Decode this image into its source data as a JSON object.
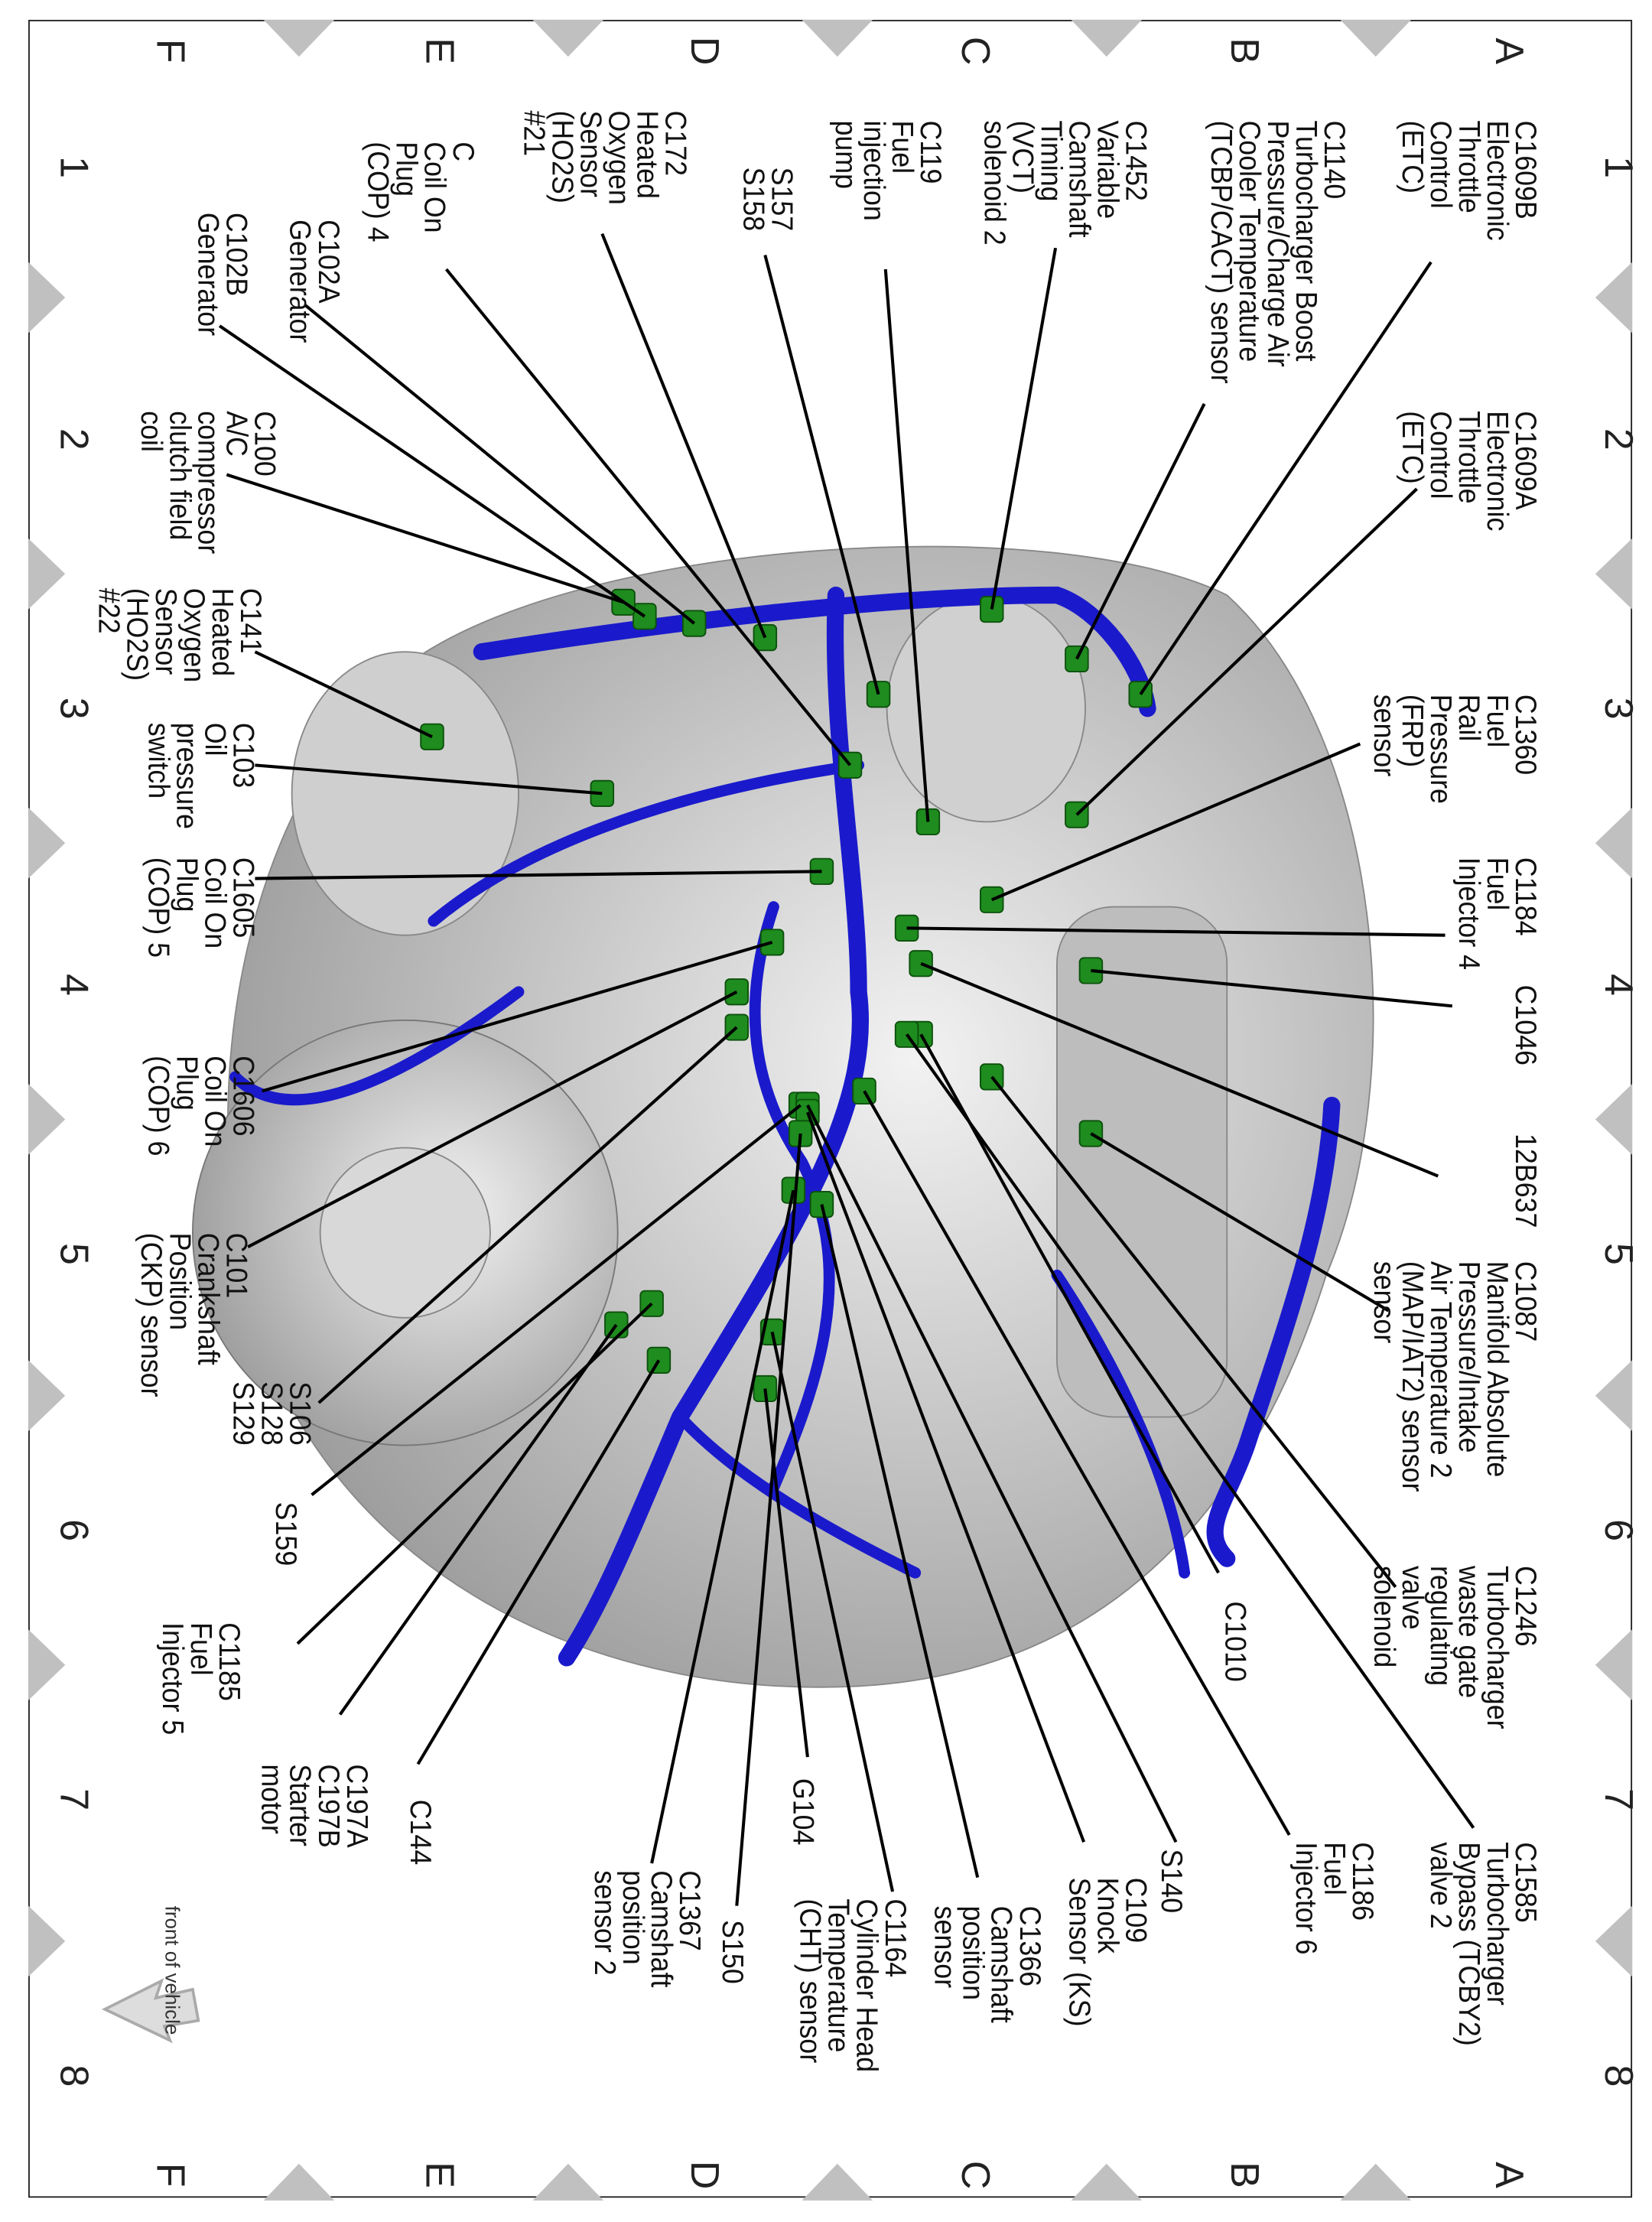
{
  "grid": {
    "columns": [
      "1",
      "2",
      "3",
      "4",
      "5",
      "6",
      "7",
      "8"
    ],
    "rows": [
      "A",
      "B",
      "C",
      "D",
      "E",
      "F"
    ]
  },
  "labels": [
    {
      "lines": [
        "C1609B",
        "Electronic",
        "Throttle",
        "Control",
        "(ETC)"
      ]
    },
    {
      "lines": [
        "C1140",
        "Turbocharger Boost",
        "Pressure/Charge Air",
        "Cooler Temperature",
        "(TCBP/CACT) sensor"
      ]
    },
    {
      "lines": [
        "C1452",
        "Variable",
        "Camshaft",
        "Timing",
        "(VCT)",
        "solenoid 2"
      ]
    },
    {
      "lines": [
        "C119",
        "Fuel",
        "injection",
        "pump"
      ]
    },
    {
      "lines": [
        "S157",
        "S158"
      ]
    },
    {
      "lines": [
        "C172",
        "Heated",
        "Oxygen",
        "Sensor",
        "(HO2S)",
        "#21"
      ]
    },
    {
      "lines": [
        "C",
        "Coil On",
        "Plug",
        "(COP) 4"
      ]
    },
    {
      "lines": [
        "C102A",
        "Generator"
      ]
    },
    {
      "lines": [
        "C102B",
        "Generator"
      ]
    },
    {
      "lines": [
        "C1609A",
        "Electronic",
        "Throttle",
        "Control",
        "(ETC)"
      ]
    },
    {
      "lines": [
        "C100",
        "A/C",
        "compressor",
        "clutch field",
        "coil"
      ]
    },
    {
      "lines": [
        "C1360",
        "Fuel",
        "Rail",
        "Pressure",
        "(FRP)",
        "sensor"
      ]
    },
    {
      "lines": [
        "C141",
        "Heated",
        "Oxygen",
        "Sensor",
        "(HO2S)",
        "#22"
      ]
    },
    {
      "lines": [
        "C103",
        "Oil",
        "pressure",
        "switch"
      ]
    },
    {
      "lines": [
        "C1184",
        "Fuel",
        "Injector 4"
      ]
    },
    {
      "lines": [
        "C1605",
        "Coil On",
        "Plug",
        "(COP) 5"
      ]
    },
    {
      "lines": [
        "C1046"
      ]
    },
    {
      "lines": [
        "C1606",
        "Coil On",
        "Plug",
        "(COP) 6"
      ]
    },
    {
      "lines": [
        "12B637"
      ]
    },
    {
      "lines": [
        "C101",
        "Crankshaft",
        "Position",
        "(CKP) sensor"
      ]
    },
    {
      "lines": [
        "C1087",
        "Manifold Absolute",
        "Pressure/Intake",
        "Air Temperature 2",
        "(MAP/IAT2) sensor",
        "sensor"
      ]
    },
    {
      "lines": [
        "S106",
        "S128",
        "S129"
      ]
    },
    {
      "lines": [
        "S159"
      ]
    },
    {
      "lines": [
        "C1246",
        "Turbocharger",
        "waste gate",
        "regulating",
        "valve",
        "solenoid"
      ]
    },
    {
      "lines": [
        "C1010"
      ]
    },
    {
      "lines": [
        "C1185",
        "Fuel",
        "Injector 5"
      ]
    },
    {
      "lines": [
        "C144"
      ]
    },
    {
      "lines": [
        "C197A",
        "C197B",
        "Starter",
        "motor"
      ]
    },
    {
      "lines": [
        "C1585",
        "Turbocharger",
        "Bypass (TCBY2)",
        "valve 2"
      ]
    },
    {
      "lines": [
        "C1186",
        "Fuel",
        "Injector 6"
      ]
    },
    {
      "lines": [
        "S140"
      ]
    },
    {
      "lines": [
        "C109",
        "Knock",
        "Sensor (KS)"
      ]
    },
    {
      "lines": [
        "C1366",
        "Camshaft",
        "position",
        "sensor"
      ]
    },
    {
      "lines": [
        "G104"
      ]
    },
    {
      "lines": [
        "C1164",
        "Cylinder Head",
        "Temperature",
        "(CHT) sensor"
      ]
    },
    {
      "lines": [
        "S150"
      ]
    },
    {
      "lines": [
        "C1367",
        "Camshaft",
        "position",
        "sensor 2"
      ]
    }
  ],
  "orientation": {
    "label": "front of vehicle",
    "icon": "arrow-icon"
  },
  "colors": {
    "harness": "#1a1acc",
    "connector": "#1e8c1e",
    "engine": "#c8c8c8",
    "grid_marker": "#c0c0c0"
  }
}
